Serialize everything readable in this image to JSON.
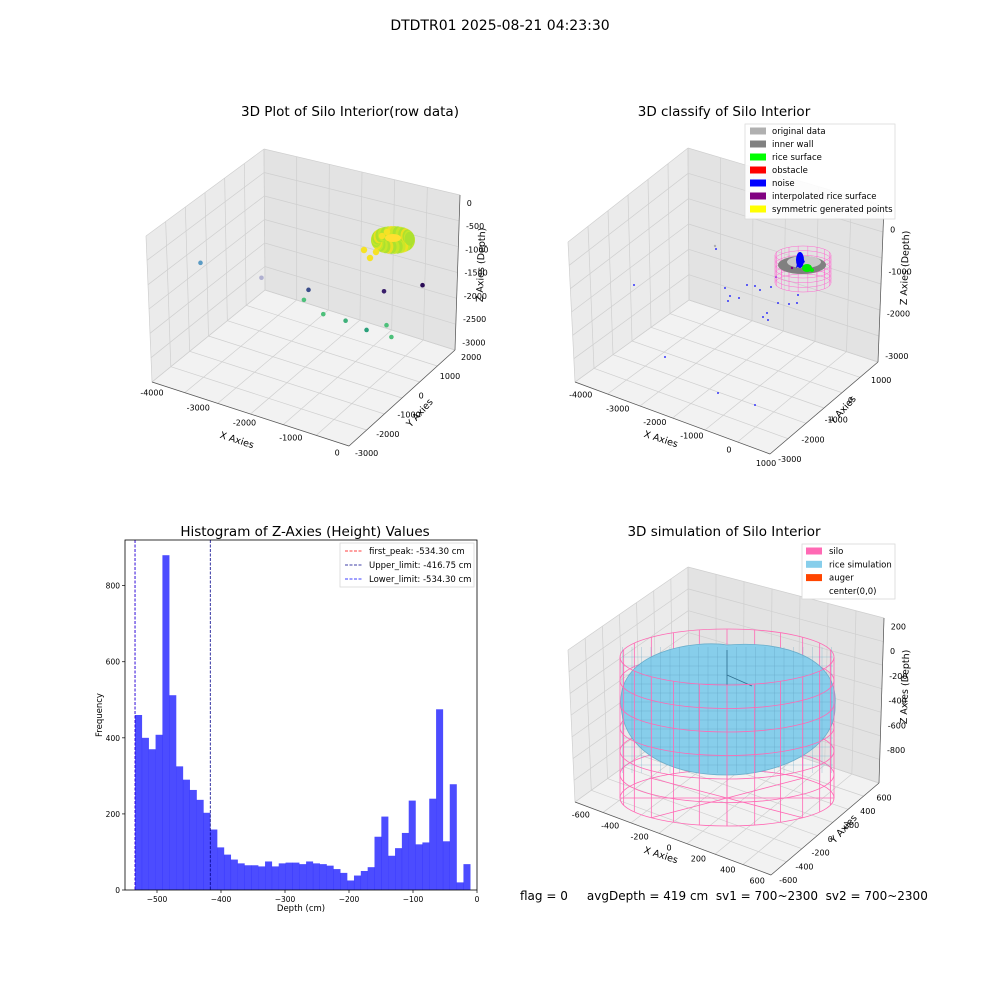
{
  "suptitle": "DTDTR01 2025-08-21 04:23:30",
  "footer_text": "flag = 0     avgDepth = 419 cm  sv1 = 700~2300  sv2 = 700~2300",
  "chart_data": [
    {
      "type": "scatter",
      "title": "3D Plot of Silo Interior(row data)",
      "xlabel": "X Axies",
      "ylabel": "Y Axies",
      "zlabel": "Z Axies (Depth)",
      "x_ticks": [
        "-4000",
        "-3000",
        "-2000",
        "-1000",
        "0"
      ],
      "y_ticks": [
        "-3000",
        "-2000",
        "-1000",
        "0",
        "1000",
        "2000"
      ],
      "z_ticks": [
        "0",
        "-500",
        "-1000",
        "-1500",
        "-2000",
        "-2500",
        "-3000"
      ],
      "points": [
        {
          "x": -3900,
          "y": 300,
          "z": -1600,
          "color": "#5b9bc4"
        },
        {
          "x": -2700,
          "y": -2800,
          "z": -2600,
          "color": "#3b4d8a"
        },
        {
          "x": -1100,
          "y": -3300,
          "z": -2400,
          "color": "#3a1f6b"
        },
        {
          "x": -300,
          "y": -3600,
          "z": -2200,
          "color": "#2a0b56"
        },
        {
          "x": -2200,
          "y": 900,
          "z": -1300,
          "color": "#b0b0d0"
        },
        {
          "x": -1500,
          "y": 200,
          "z": -1700,
          "color": "#4dc07a"
        },
        {
          "x": -1000,
          "y": 300,
          "z": -1800,
          "color": "#4dc07a"
        },
        {
          "x": -600,
          "y": 0,
          "z": -1900,
          "color": "#3fb07a"
        },
        {
          "x": -400,
          "y": -700,
          "z": -2200,
          "color": "#2aa07a"
        },
        {
          "x": 200,
          "y": -400,
          "z": -1900,
          "color": "#4dc07a"
        },
        {
          "x": 400,
          "y": -200,
          "z": -2000,
          "color": "#4dc07a"
        }
      ]
    },
    {
      "type": "scatter",
      "title": "3D classify of Silo Interior",
      "xlabel": "X Axies",
      "ylabel": "Y Axies",
      "zlabel": "Z Axies (Depth)",
      "x_ticks": [
        "-4000",
        "-3000",
        "-2000",
        "-1000",
        "0",
        "1000"
      ],
      "y_ticks": [
        "-3000",
        "-2000",
        "-1000",
        "0",
        "1000"
      ],
      "z_ticks": [
        "0",
        "-1000",
        "-2000",
        "-3000"
      ],
      "legend": [
        {
          "label": "original data",
          "color": "#b0b0b0"
        },
        {
          "label": "inner wall",
          "color": "#808080"
        },
        {
          "label": "rice surface",
          "color": "#00ff00"
        },
        {
          "label": "obstacle",
          "color": "#ff0000"
        },
        {
          "label": "noise",
          "color": "#0000ff"
        },
        {
          "label": "interpolated rice surface",
          "color": "#800080"
        },
        {
          "label": "symmetric generated points",
          "color": "#ffff00"
        }
      ],
      "legend_position": "upper right"
    },
    {
      "type": "bar",
      "title": "Histogram of Z-Axies (Height) Values",
      "xlabel": "Depth (cm)",
      "ylabel": "Frequency",
      "xlim": [
        -550,
        0
      ],
      "ylim": [
        0,
        920
      ],
      "x_ticks": [
        -500,
        -400,
        -300,
        -200,
        -100,
        0
      ],
      "y_ticks": [
        0,
        200,
        400,
        600,
        800
      ],
      "bin_start": -534.3,
      "bin_width": 10.69,
      "values": [
        460,
        400,
        370,
        408,
        880,
        512,
        325,
        290,
        263,
        237,
        203,
        159,
        112,
        93,
        80,
        70,
        65,
        65,
        62,
        75,
        62,
        70,
        72,
        72,
        68,
        75,
        70,
        68,
        64,
        55,
        45,
        25,
        38,
        50,
        60,
        140,
        193,
        90,
        110,
        150,
        235,
        120,
        125,
        240,
        475,
        128,
        278,
        20,
        68
      ],
      "bar_color": "#0000ff",
      "vlines": [
        {
          "label": "first_peak: -534.30 cm",
          "x": -534.3,
          "color": "#ff0000"
        },
        {
          "label": "Upper_limit: -416.75 cm",
          "x": -416.75,
          "color": "#00008b"
        },
        {
          "label": "Lower_limit: -534.30 cm",
          "x": -534.3,
          "color": "#0000ff"
        }
      ],
      "legend_position": "upper right"
    },
    {
      "type": "scatter",
      "title": "3D simulation of Silo Interior",
      "xlabel": "X Axies",
      "ylabel": "Y Axies",
      "zlabel": "Z Axies (Depth)",
      "x_ticks": [
        "-600",
        "-400",
        "-200",
        "0",
        "200",
        "400",
        "600"
      ],
      "y_ticks": [
        "-600",
        "-400",
        "-200",
        "0",
        "200",
        "400",
        "600"
      ],
      "z_ticks": [
        "200",
        "0",
        "-200",
        "-400",
        "-600",
        "-800"
      ],
      "legend": [
        {
          "label": "silo",
          "color": "#ff69b4"
        },
        {
          "label": "rice simulation",
          "color": "#87ceeb"
        },
        {
          "label": "auger",
          "color": "#ff4500"
        },
        {
          "label": "center(0,0)",
          "color": ""
        }
      ],
      "legend_position": "upper right"
    }
  ]
}
